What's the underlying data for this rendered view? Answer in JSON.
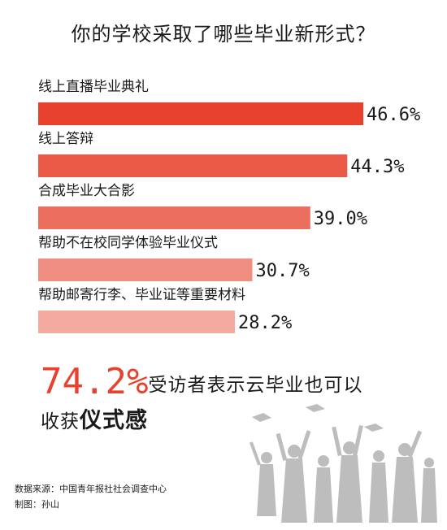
{
  "chart_data": {
    "type": "bar",
    "orientation": "horizontal",
    "title": "你的学校采取了哪些毕业新形式？",
    "categories": [
      "线上直播毕业典礼",
      "线上答辩",
      "合成毕业大合影",
      "帮助不在校同学体验毕业仪式",
      "帮助邮寄行李、毕业证等重要材料"
    ],
    "values": [
      46.6,
      44.3,
      39.0,
      30.7,
      28.2
    ],
    "value_labels": [
      "46.6%",
      "44.3%",
      "39.0%",
      "30.7%",
      "28.2%"
    ],
    "bar_colors": [
      "#e8412e",
      "#ea5a47",
      "#ec6e5e",
      "#f08e81",
      "#f3aa9f"
    ],
    "xlim": [
      0,
      46.6
    ],
    "grid": false,
    "legend": "none"
  },
  "headline": {
    "percent": "74.2%",
    "line1_text": "受访者表示云毕业也可以",
    "line2_prefix": "收获",
    "line2_emphasis": "仪式感"
  },
  "credits": {
    "source": "数据来源：中国青年报社社会调查中心",
    "maker": "制图：孙山"
  },
  "illustration": {
    "name": "graduates-silhouette",
    "color": "#bdbdbd"
  }
}
